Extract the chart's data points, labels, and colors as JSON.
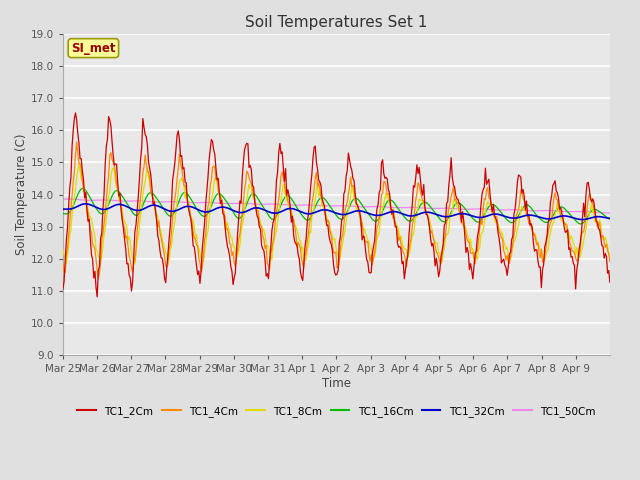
{
  "title": "Soil Temperatures Set 1",
  "xlabel": "Time",
  "ylabel": "Soil Temperature (C)",
  "ylim": [
    9.0,
    19.0
  ],
  "yticks": [
    9.0,
    10.0,
    11.0,
    12.0,
    13.0,
    14.0,
    15.0,
    16.0,
    17.0,
    18.0,
    19.0
  ],
  "background_color": "#e8e8e8",
  "plot_bg_color": "#e0e0e0",
  "series_colors": {
    "TC1_2Cm": "#cc0000",
    "TC1_4Cm": "#ff8800",
    "TC1_8Cm": "#dddd00",
    "TC1_16Cm": "#00bb00",
    "TC1_32Cm": "#0000cc",
    "TC1_50Cm": "#ee88ee"
  },
  "annotation_text": "SI_met",
  "annotation_box_color": "#ffff99",
  "annotation_border_color": "#999900",
  "legend_labels": [
    "TC1_2Cm",
    "TC1_4Cm",
    "TC1_8Cm",
    "TC1_16Cm",
    "TC1_32Cm",
    "TC1_50Cm"
  ],
  "x_tick_labels": [
    "Mar 25",
    "Mar 26",
    "Mar 27",
    "Mar 28",
    "Mar 29",
    "Mar 30",
    "Mar 31",
    "Apr 1",
    "Apr 2",
    "Apr 3",
    "Apr 4",
    "Apr 5",
    "Apr 6",
    "Apr 7",
    "Apr 8",
    "Apr 9"
  ],
  "num_points": 480
}
